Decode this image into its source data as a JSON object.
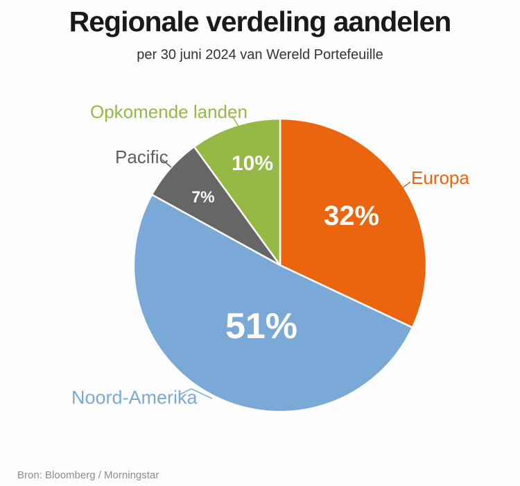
{
  "chart_data": {
    "type": "pie",
    "title": "Regionale verdeling aandelen",
    "subtitle": "per 30 juni 2024 van Wereld Portefeuille",
    "source": "Bron: Bloomberg / Morningstar",
    "unit": "%",
    "start_angle": "12-oclock",
    "direction": "clockwise",
    "legend_position": "outside-labels-with-leader-lines",
    "slices": [
      {
        "label": "Europa",
        "value": 32,
        "value_label": "32%",
        "color": "#eb650e",
        "label_color": "#eb650e"
      },
      {
        "label": "Noord-Amerika",
        "value": 51,
        "value_label": "51%",
        "color": "#7aa9d8",
        "label_color": "#7aa9d8"
      },
      {
        "label": "Pacific",
        "value": 7,
        "value_label": "7%",
        "color": "#666666",
        "label_color": "#5f5f5f"
      },
      {
        "label": "Opkomende landen",
        "value": 10,
        "value_label": "10%",
        "color": "#96b845",
        "label_color": "#96b845"
      }
    ]
  },
  "colors": {
    "background": "#fdfdfd",
    "title_text": "#1a1a1a",
    "subtitle_text": "#333333",
    "source_text": "#8c8c8c",
    "percent_text": "#ffffff"
  }
}
